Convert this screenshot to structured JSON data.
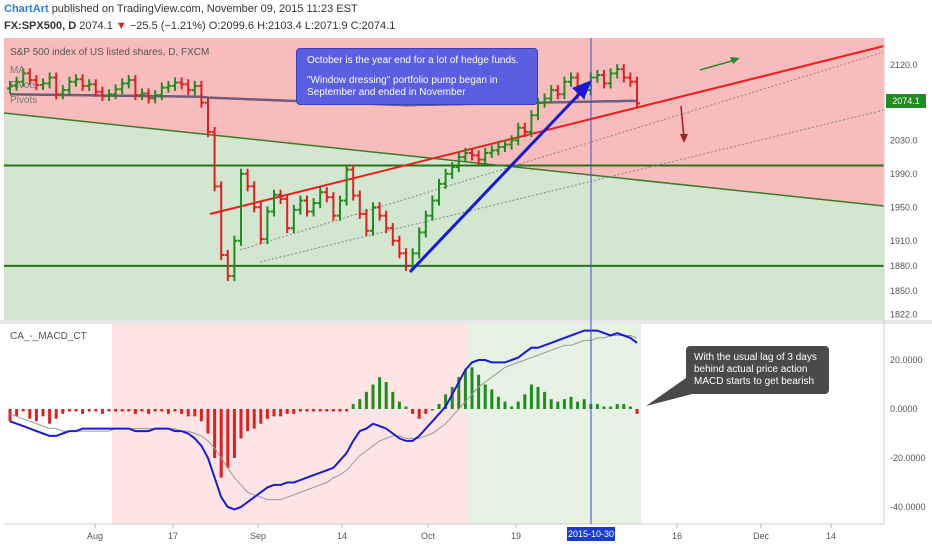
{
  "header": {
    "brand": "ChartArt",
    "published": "published on TradingView.com, November 09, 2015 11:23 EST",
    "symbol": "FX:SPX500, D",
    "last": "2074.1",
    "change": "−25.5 (−1.21%)",
    "ohlc": "O:2099.6 H:2103.4 L:2071.9 C:2074.1"
  },
  "main_pane": {
    "title": "S&P 500 index of US listed shares, D, FXCM",
    "indicators": [
      "MA",
      "Pivots",
      "Pivots"
    ],
    "last_price_tag": "2074.1",
    "colors": {
      "up": "#1e8c1e",
      "down": "#e02020",
      "red_zone": "#f7b3b3",
      "green_zone": "#cde3c8",
      "ma": "#6f5d7a",
      "blue": "#1a1ad6"
    }
  },
  "callout_top": {
    "line1": "October is the year end for a lot of hedge funds.",
    "line2": "\"Window dressing\" portfolio pump began in",
    "line3": "September and ended in November"
  },
  "macd_pane": {
    "title": "CA_-_MACD_CT"
  },
  "callout_macd": {
    "line1": "With the usual lag of 3 days",
    "line2": "behind actual price action",
    "line3": "MACD starts to get bearish"
  },
  "x_axis": {
    "labels": [
      "Aug",
      "17",
      "Sep",
      "14",
      "Oct",
      "19",
      "16",
      "Dec",
      "14"
    ],
    "cursor_label": "2015-10-30"
  },
  "chart_data": [
    {
      "type": "candlestick",
      "title": "S&P 500 index of US listed shares, D, FXCM",
      "y_ticks": [
        2120.0,
        2080.0,
        2030.0,
        1990.0,
        1950.0,
        1910.0,
        1880.0,
        1850.0,
        1822.0
      ],
      "ylim": [
        1822,
        2140
      ],
      "last_value": 2074.1,
      "horizontal_levels": [
        2000,
        1880
      ],
      "closes": [
        2095,
        2100,
        2110,
        2102,
        2096,
        2098,
        2105,
        2085,
        2090,
        2100,
        2103,
        2095,
        2097,
        2088,
        2083,
        2085,
        2091,
        2098,
        2102,
        2084,
        2086,
        2080,
        2084,
        2093,
        2095,
        2099,
        2097,
        2090,
        2095,
        2075,
        2040,
        1975,
        1893,
        1868,
        1910,
        1990,
        1975,
        1950,
        1912,
        1945,
        1965,
        1960,
        1925,
        1947,
        1958,
        1945,
        1955,
        1968,
        1962,
        1940,
        1958,
        1995,
        1964,
        1942,
        1922,
        1950,
        1940,
        1925,
        1910,
        1895,
        1880,
        1895,
        1920,
        1940,
        1958,
        1978,
        1990,
        1998,
        2010,
        2015,
        2012,
        2007,
        2015,
        2018,
        2022,
        2025,
        2030,
        2045,
        2040,
        2060,
        2075,
        2080,
        2090,
        2085,
        2100,
        2105,
        2085,
        2090,
        2105,
        2108,
        2098,
        2110,
        2115,
        2105,
        2100,
        2074.1
      ]
    },
    {
      "type": "bar",
      "title": "CA_-_MACD_CT",
      "y_ticks": [
        20.0,
        0.0,
        -20.0,
        -40.0
      ],
      "ylim": [
        -46,
        33
      ],
      "series": [
        {
          "values": [
            -5,
            -3,
            -1,
            -4,
            -5,
            -3,
            -6,
            -4,
            -2,
            -1,
            -1,
            -2,
            -1,
            -1,
            -2,
            -1,
            -1,
            -1,
            -1,
            -2,
            -1,
            -2,
            -1,
            -1,
            -2,
            -1,
            -2,
            -3,
            -3,
            -5,
            -10,
            -20,
            -28,
            -24,
            -20,
            -12,
            -9,
            -8,
            -6,
            -4,
            -3,
            -3,
            -2,
            -2,
            -1,
            -1,
            -1,
            -1,
            -1,
            -1,
            -1,
            -1,
            2,
            4,
            7,
            10,
            13,
            11,
            7,
            3,
            1,
            -2,
            -4,
            -2,
            0,
            2,
            6,
            9,
            13,
            16,
            17,
            14,
            10,
            8,
            5,
            3,
            1,
            3,
            6,
            10,
            9,
            7,
            4,
            3,
            4,
            5,
            3,
            4,
            2,
            2,
            1,
            1,
            2,
            2,
            1,
            -2
          ]
        },
        {
          "values": [
            -5,
            -6,
            -7,
            -8,
            -9,
            -10,
            -11,
            -11,
            -10,
            -9,
            -9,
            -8,
            -8,
            -8,
            -8,
            -8,
            -8,
            -8,
            -8,
            -9,
            -9,
            -9,
            -8,
            -8,
            -8,
            -9,
            -9,
            -10,
            -12,
            -15,
            -20,
            -28,
            -36,
            -40,
            -41,
            -40,
            -38,
            -36,
            -34,
            -32,
            -31,
            -31,
            -30,
            -30,
            -29,
            -28,
            -27,
            -26,
            -25,
            -24,
            -21,
            -18,
            -13,
            -9,
            -8,
            -6,
            -7,
            -8,
            -10,
            -12,
            -13,
            -13,
            -11,
            -8,
            -5,
            -2,
            1,
            6,
            11,
            16,
            19,
            20,
            20,
            19,
            19,
            19,
            20,
            21,
            23,
            25,
            25,
            26,
            27,
            28,
            29,
            30,
            31,
            32,
            32,
            32,
            31,
            30,
            31,
            30,
            29,
            27
          ]
        },
        {
          "values": [
            -2,
            -3,
            -4,
            -5,
            -6,
            -7,
            -8,
            -8,
            -9,
            -9,
            -9,
            -9,
            -9,
            -9,
            -9,
            -9,
            -8,
            -8,
            -8,
            -8,
            -8,
            -8,
            -8,
            -8,
            -8,
            -8,
            -9,
            -9,
            -10,
            -11,
            -13,
            -16,
            -20,
            -24,
            -28,
            -31,
            -34,
            -35,
            -36,
            -37,
            -37,
            -37,
            -36,
            -35,
            -34,
            -33,
            -32,
            -31,
            -30,
            -28,
            -27,
            -25,
            -22,
            -19,
            -17,
            -15,
            -13,
            -12,
            -11,
            -11,
            -12,
            -12,
            -12,
            -11,
            -10,
            -8,
            -6,
            -3,
            0,
            3,
            6,
            9,
            11,
            13,
            15,
            17,
            18,
            19,
            20,
            21,
            22,
            23,
            24,
            25,
            26,
            26,
            27,
            28,
            28,
            29,
            29,
            30,
            30,
            30,
            30,
            29
          ]
        }
      ]
    }
  ]
}
